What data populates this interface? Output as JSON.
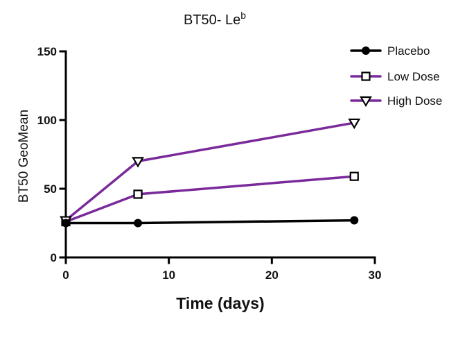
{
  "chart_data": {
    "type": "line",
    "title": "BT50- Le",
    "title_superscript": "b",
    "xlabel": "Time (days)",
    "ylabel": "BT50 GeoMean",
    "xlim": [
      0,
      30
    ],
    "ylim": [
      0,
      150
    ],
    "xticks": [
      0,
      10,
      20,
      30
    ],
    "yticks": [
      0,
      50,
      100,
      150
    ],
    "grid": false,
    "legend_position": "top-right",
    "series": [
      {
        "name": "Placebo",
        "marker": "circle",
        "color": "#000000",
        "x": [
          0,
          7,
          28
        ],
        "y": [
          25,
          25,
          27
        ]
      },
      {
        "name": "Low Dose",
        "marker": "square",
        "color": "#7a2a9a",
        "x": [
          0,
          7,
          28
        ],
        "y": [
          26,
          46,
          59
        ]
      },
      {
        "name": "High Dose",
        "marker": "triangle-down",
        "color": "#7a2a9a",
        "x": [
          0,
          7,
          28
        ],
        "y": [
          27,
          70,
          98
        ]
      }
    ]
  }
}
